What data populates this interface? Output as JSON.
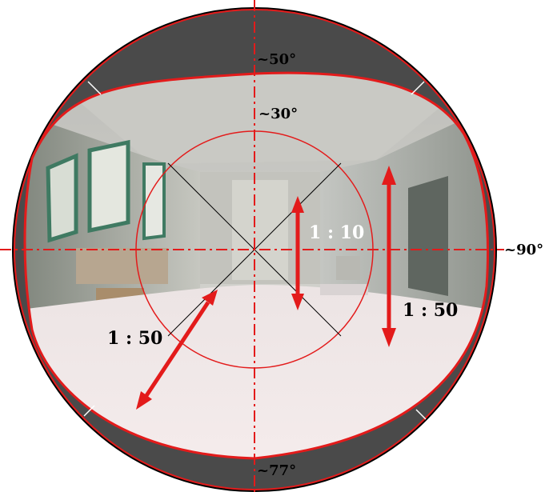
{
  "labels": {
    "angle_top": "~50°",
    "angle_inner": "~30°",
    "angle_right": "~90°",
    "angle_bottom": "~77°",
    "ratio_center": "1 : 10",
    "ratio_right": "1 : 50",
    "ratio_left": "1 : 50"
  },
  "colors": {
    "accent": "#e31b1b",
    "rim": "#4a4a4a",
    "outline": "#000000",
    "inner_label": "#ffffff",
    "outer_label": "#000000"
  },
  "image_content": "fisheye photograph of an empty interior room (hallway with windows on the left, doorway on the right)"
}
